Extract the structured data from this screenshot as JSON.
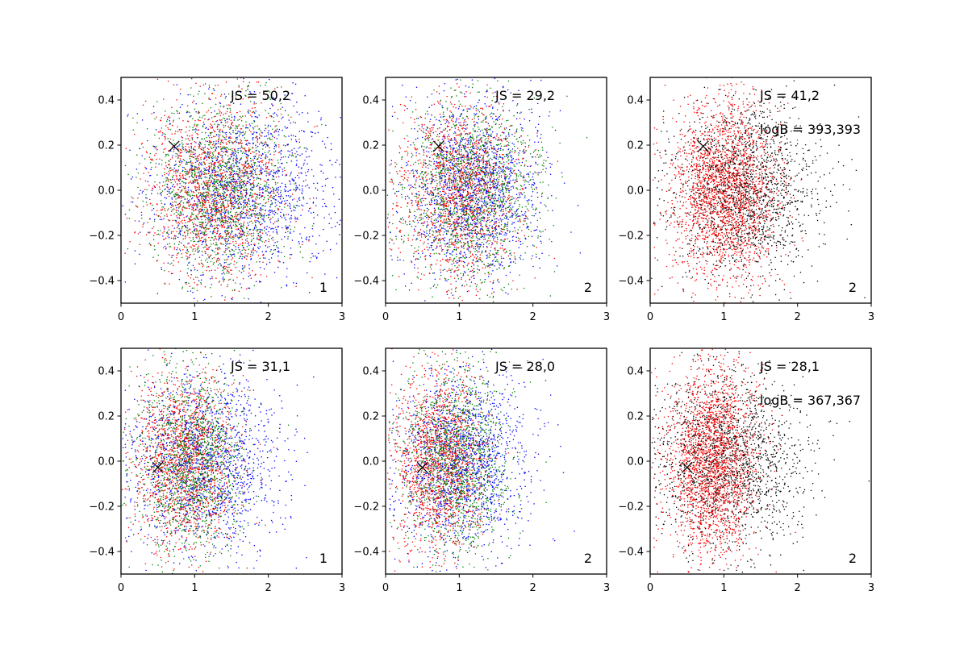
{
  "chart_data": [
    {
      "type": "scatter",
      "xlim": [
        0,
        3
      ],
      "ylim": [
        -0.5,
        0.5
      ],
      "xticks": [
        0,
        1,
        2,
        3
      ],
      "yticks": [
        -0.4,
        -0.2,
        0.0,
        0.2,
        0.4
      ],
      "xtick_labels": [
        "0",
        "1",
        "2",
        "3"
      ],
      "ytick_labels": [
        "−0.4",
        "−0.2",
        "0.0",
        "0.2",
        "0.4"
      ],
      "grid": false,
      "series": [
        {
          "color": "#0000ff",
          "count": 1500,
          "x_mean": 1.7,
          "x_sd": 0.65,
          "y_mean": 0.0,
          "y_sd": 0.2
        },
        {
          "color": "#ff0000",
          "count": 1500,
          "x_mean": 1.25,
          "x_sd": 0.45,
          "y_mean": 0.0,
          "y_sd": 0.2
        },
        {
          "color": "#008000",
          "count": 1500,
          "x_mean": 1.35,
          "x_sd": 0.45,
          "y_mean": 0.0,
          "y_sd": 0.2
        }
      ],
      "marker": {
        "x": 0.72,
        "y": 0.195,
        "symbol": "x"
      },
      "annotations": [
        "JS = 50,2"
      ],
      "corner_label": "1"
    },
    {
      "type": "scatter",
      "xlim": [
        0,
        3
      ],
      "ylim": [
        -0.5,
        0.5
      ],
      "xticks": [
        0,
        1,
        2,
        3
      ],
      "yticks": [
        -0.4,
        -0.2,
        0.0,
        0.2,
        0.4
      ],
      "xtick_labels": [
        "0",
        "1",
        "2",
        "3"
      ],
      "ytick_labels": [
        "−0.4",
        "−0.2",
        "0.0",
        "0.2",
        "0.4"
      ],
      "grid": false,
      "series": [
        {
          "color": "#0000ff",
          "count": 1500,
          "x_mean": 1.2,
          "x_sd": 0.45,
          "y_mean": 0.0,
          "y_sd": 0.2
        },
        {
          "color": "#ff0000",
          "count": 1500,
          "x_mean": 1.0,
          "x_sd": 0.4,
          "y_mean": 0.0,
          "y_sd": 0.2
        },
        {
          "color": "#008000",
          "count": 1500,
          "x_mean": 1.15,
          "x_sd": 0.45,
          "y_mean": 0.0,
          "y_sd": 0.2
        }
      ],
      "marker": {
        "x": 0.72,
        "y": 0.195,
        "symbol": "x"
      },
      "annotations": [
        "JS = 29,2"
      ],
      "corner_label": "2"
    },
    {
      "type": "scatter",
      "xlim": [
        0,
        3
      ],
      "ylim": [
        -0.5,
        0.5
      ],
      "xticks": [
        0,
        1,
        2,
        3
      ],
      "yticks": [
        -0.4,
        -0.2,
        0.0,
        0.2,
        0.4
      ],
      "xtick_labels": [
        "0",
        "1",
        "2",
        "3"
      ],
      "ytick_labels": [
        "−0.4",
        "−0.2",
        "0.0",
        "0.2",
        "0.4"
      ],
      "grid": false,
      "series": [
        {
          "color": "#000000",
          "count": 1700,
          "x_mean": 1.3,
          "x_sd": 0.5,
          "y_mean": 0.0,
          "y_sd": 0.2
        },
        {
          "color": "#ff0000",
          "count": 2200,
          "x_mean": 1.0,
          "x_sd": 0.35,
          "y_mean": 0.0,
          "y_sd": 0.2
        }
      ],
      "marker": {
        "x": 0.72,
        "y": 0.195,
        "symbol": "x"
      },
      "annotations": [
        "JS = 41,2",
        "logB = 393,393"
      ],
      "corner_label": "2"
    },
    {
      "type": "scatter",
      "xlim": [
        0,
        3
      ],
      "ylim": [
        -0.5,
        0.5
      ],
      "xticks": [
        0,
        1,
        2,
        3
      ],
      "yticks": [
        -0.4,
        -0.2,
        0.0,
        0.2,
        0.4
      ],
      "xtick_labels": [
        "0",
        "1",
        "2",
        "3"
      ],
      "ytick_labels": [
        "−0.4",
        "−0.2",
        "0.0",
        "0.2",
        "0.4"
      ],
      "grid": false,
      "series": [
        {
          "color": "#0000ff",
          "count": 1500,
          "x_mean": 1.15,
          "x_sd": 0.5,
          "y_mean": 0.0,
          "y_sd": 0.2
        },
        {
          "color": "#ff0000",
          "count": 1500,
          "x_mean": 0.85,
          "x_sd": 0.35,
          "y_mean": 0.0,
          "y_sd": 0.2
        },
        {
          "color": "#008000",
          "count": 1500,
          "x_mean": 0.95,
          "x_sd": 0.35,
          "y_mean": 0.0,
          "y_sd": 0.2
        }
      ],
      "marker": {
        "x": 0.5,
        "y": -0.028,
        "symbol": "x"
      },
      "annotations": [
        "JS = 31,1"
      ],
      "corner_label": "1"
    },
    {
      "type": "scatter",
      "xlim": [
        0,
        3
      ],
      "ylim": [
        -0.5,
        0.5
      ],
      "xticks": [
        0,
        1,
        2,
        3
      ],
      "yticks": [
        -0.4,
        -0.2,
        0.0,
        0.2,
        0.4
      ],
      "xtick_labels": [
        "0",
        "1",
        "2",
        "3"
      ],
      "ytick_labels": [
        "−0.4",
        "−0.2",
        "0.0",
        "0.2",
        "0.4"
      ],
      "grid": false,
      "series": [
        {
          "color": "#0000ff",
          "count": 1500,
          "x_mean": 1.05,
          "x_sd": 0.45,
          "y_mean": 0.0,
          "y_sd": 0.2
        },
        {
          "color": "#ff0000",
          "count": 1500,
          "x_mean": 0.75,
          "x_sd": 0.3,
          "y_mean": 0.0,
          "y_sd": 0.2
        },
        {
          "color": "#008000",
          "count": 1500,
          "x_mean": 0.95,
          "x_sd": 0.35,
          "y_mean": 0.0,
          "y_sd": 0.2
        }
      ],
      "marker": {
        "x": 0.5,
        "y": -0.028,
        "symbol": "x"
      },
      "annotations": [
        "JS = 28,0"
      ],
      "corner_label": "2"
    },
    {
      "type": "scatter",
      "xlim": [
        0,
        3
      ],
      "ylim": [
        -0.5,
        0.5
      ],
      "xticks": [
        0,
        1,
        2,
        3
      ],
      "yticks": [
        -0.4,
        -0.2,
        0.0,
        0.2,
        0.4
      ],
      "xtick_labels": [
        "0",
        "1",
        "2",
        "3"
      ],
      "ytick_labels": [
        "−0.4",
        "−0.2",
        "0.0",
        "0.2",
        "0.4"
      ],
      "grid": false,
      "series": [
        {
          "color": "#000000",
          "count": 1700,
          "x_mean": 1.1,
          "x_sd": 0.5,
          "y_mean": 0.0,
          "y_sd": 0.2
        },
        {
          "color": "#ff0000",
          "count": 2200,
          "x_mean": 0.85,
          "x_sd": 0.3,
          "y_mean": 0.0,
          "y_sd": 0.2
        }
      ],
      "marker": {
        "x": 0.5,
        "y": -0.028,
        "symbol": "x"
      },
      "annotations": [
        "JS = 28,1",
        "logB = 367,367"
      ],
      "corner_label": "2"
    }
  ]
}
